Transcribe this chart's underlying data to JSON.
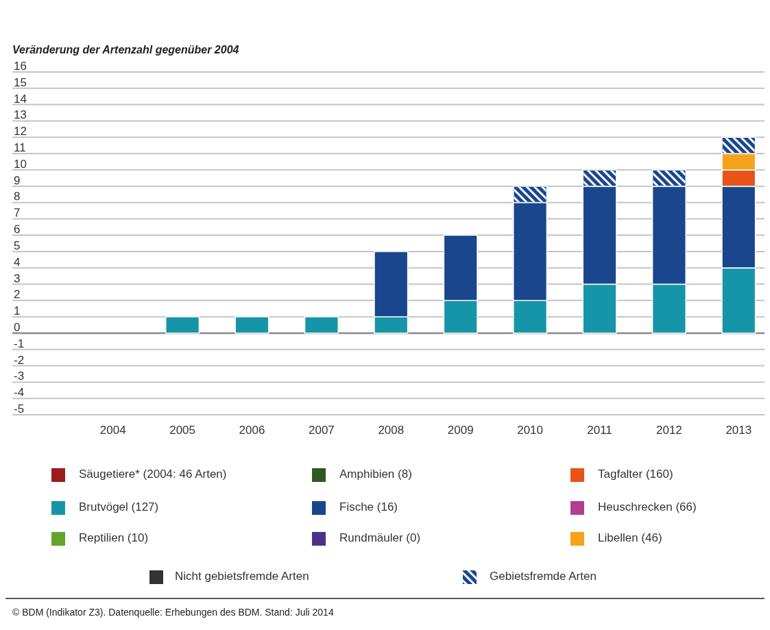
{
  "chart_data": {
    "type": "bar",
    "stacked": true,
    "title": "Veränderung der Artenzahl gegenüber 2004",
    "categories": [
      "2004",
      "2005",
      "2006",
      "2007",
      "2008",
      "2009",
      "2010",
      "2011",
      "2012",
      "2013"
    ],
    "series": [
      {
        "name": "Säugetiere* (2004: 46 Arten)",
        "color": "#9b1b1f",
        "values": [
          0,
          0,
          0,
          0,
          0,
          0,
          0,
          0,
          0,
          0
        ]
      },
      {
        "name": "Brutvögel (127)",
        "color": "#1695a8",
        "values": [
          0,
          1,
          1,
          1,
          1,
          2,
          2,
          3,
          3,
          4
        ]
      },
      {
        "name": "Reptilien (10)",
        "color": "#63a52a",
        "values": [
          0,
          0,
          0,
          0,
          0,
          0,
          0,
          0,
          0,
          0
        ]
      },
      {
        "name": "Amphibien (8)",
        "color": "#2e5a22",
        "values": [
          0,
          0,
          0,
          0,
          0,
          0,
          0,
          0,
          0,
          0
        ]
      },
      {
        "name": "Fische (16)",
        "color": "#1a468e",
        "values": [
          0,
          0,
          0,
          0,
          4,
          4,
          6,
          6,
          6,
          5
        ]
      },
      {
        "name": "Rundmäuler (0)",
        "color": "#4b3189",
        "values": [
          0,
          0,
          0,
          0,
          0,
          0,
          0,
          0,
          0,
          0
        ]
      },
      {
        "name": "Tagfalter (160)",
        "color": "#e85317",
        "values": [
          0,
          0,
          0,
          0,
          0,
          0,
          0,
          0,
          0,
          1
        ]
      },
      {
        "name": "Heuschrecken (66)",
        "color": "#b03f8e",
        "values": [
          0,
          0,
          0,
          0,
          0,
          0,
          0,
          0,
          0,
          0
        ]
      },
      {
        "name": "Libellen (46)",
        "color": "#f5a31c",
        "values": [
          0,
          0,
          0,
          0,
          0,
          0,
          0,
          0,
          0,
          1
        ]
      },
      {
        "name": "Gebietsfremde Arten",
        "color": "#1a468e",
        "values": [
          0,
          0,
          0,
          0,
          0,
          0,
          1,
          1,
          1,
          1
        ]
      }
    ],
    "ylim": [
      -5,
      16
    ],
    "yticks": [
      -5,
      -4,
      -3,
      -2,
      -1,
      0,
      1,
      2,
      3,
      4,
      5,
      6,
      7,
      8,
      9,
      10,
      11,
      12,
      13,
      14,
      15,
      16
    ],
    "grid": "y",
    "legend": "bottom",
    "annotations": [
      "Nicht gebietsfremde Arten",
      "©  BDM (Indikator Z3). Datenquelle: Erhebungen des BDM. Stand: Juli 2014"
    ]
  }
}
